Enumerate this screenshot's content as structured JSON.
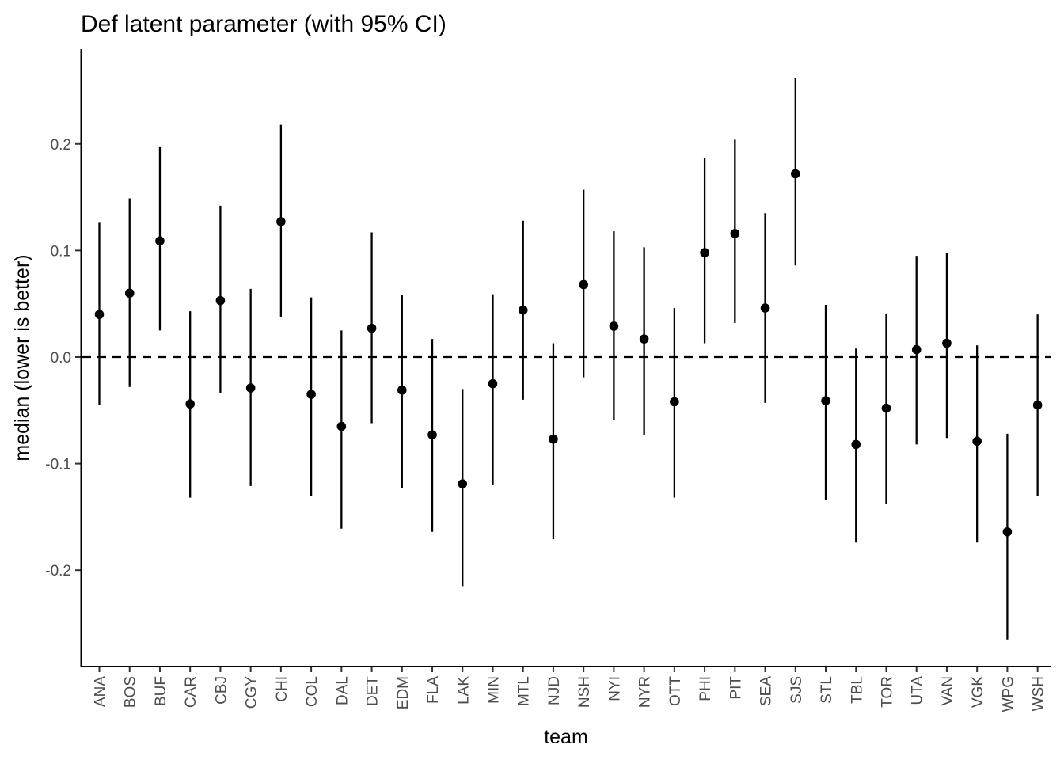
{
  "chart_data": {
    "type": "scatter",
    "title": "Def latent parameter (with 95% CI)",
    "xlabel": "team",
    "ylabel": "median (lower is better)",
    "ylim": [
      -0.29,
      0.29
    ],
    "yticks": [
      0.2,
      0.1,
      0.0,
      -0.1,
      -0.2
    ],
    "ytick_labels": [
      "0.2",
      "0.1",
      "0.0",
      "-0.1",
      "-0.2"
    ],
    "reference_line": {
      "y": 0,
      "style": "dashed"
    },
    "grid": false,
    "colors": {
      "points": "#000000",
      "axes": "#000000",
      "ticklabels": "#4d4d4d"
    },
    "categories": [
      "ANA",
      "BOS",
      "BUF",
      "CAR",
      "CBJ",
      "CGY",
      "CHI",
      "COL",
      "DAL",
      "DET",
      "EDM",
      "FLA",
      "LAK",
      "MIN",
      "MTL",
      "NJD",
      "NSH",
      "NYI",
      "NYR",
      "OTT",
      "PHI",
      "PIT",
      "SEA",
      "SJS",
      "STL",
      "TBL",
      "TOR",
      "UTA",
      "VAN",
      "VGK",
      "WPG",
      "WSH"
    ],
    "median": [
      0.04,
      0.06,
      0.109,
      -0.044,
      0.053,
      -0.029,
      0.127,
      -0.035,
      -0.065,
      0.027,
      -0.031,
      -0.073,
      -0.119,
      -0.025,
      0.044,
      -0.077,
      0.068,
      0.029,
      0.017,
      -0.042,
      0.098,
      0.116,
      0.046,
      0.172,
      -0.041,
      -0.082,
      -0.048,
      0.007,
      0.013,
      -0.079,
      -0.164,
      -0.045
    ],
    "lower": [
      -0.045,
      -0.028,
      0.025,
      -0.132,
      -0.034,
      -0.121,
      0.038,
      -0.13,
      -0.161,
      -0.062,
      -0.123,
      -0.164,
      -0.215,
      -0.12,
      -0.04,
      -0.171,
      -0.019,
      -0.059,
      -0.073,
      -0.132,
      0.013,
      0.032,
      -0.043,
      0.086,
      -0.134,
      -0.174,
      -0.138,
      -0.082,
      -0.076,
      -0.174,
      -0.265,
      -0.13
    ],
    "upper": [
      0.126,
      0.149,
      0.197,
      0.043,
      0.142,
      0.064,
      0.218,
      0.056,
      0.025,
      0.117,
      0.058,
      0.017,
      -0.03,
      0.059,
      0.128,
      0.013,
      0.157,
      0.118,
      0.103,
      0.046,
      0.187,
      0.204,
      0.135,
      0.262,
      0.049,
      0.008,
      0.041,
      0.095,
      0.098,
      0.011,
      -0.072,
      0.04
    ]
  }
}
